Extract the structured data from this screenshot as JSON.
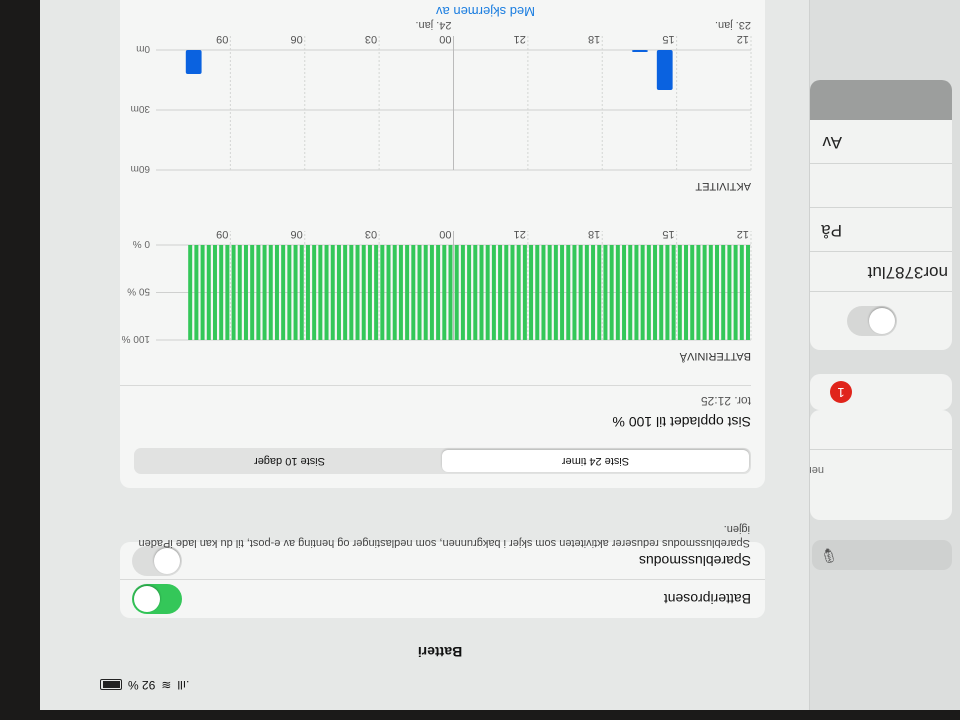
{
  "status_bar": {
    "battery_percent": "92 %",
    "signal_icon": "signal-icon",
    "wifi_icon": "wifi-icon",
    "battery_icon": "battery-icon"
  },
  "sidebar": {
    "search_icon": "microphone-icon",
    "items": [
      {
        "label": "ner"
      },
      {
        "badge": "1"
      },
      {
        "toggle_on": false
      },
      {
        "label": "nor3787lut"
      },
      {
        "label": "På"
      },
      {
        "label": "Av"
      }
    ]
  },
  "header": {
    "title": "Batteri"
  },
  "settings": {
    "battery_percent_label": "Batteriprosent",
    "battery_percent_on": true,
    "low_power_label": "Sparebluss­modus",
    "low_power_on": false,
    "low_power_description": "Sparebluss­modus reduserer aktiviteten som skjer i bakgrunnen, som nedlastinger og henting av e-post, til du kan lade iPaden igjen."
  },
  "usage": {
    "tabs": [
      {
        "label": "Siste 24 timer",
        "selected": true
      },
      {
        "label": "Siste 10 dager",
        "selected": false
      }
    ],
    "last_charged_title": "Sist oppladet til 100 %",
    "last_charged_time": "tor. 21:25",
    "link_label": "Med skjermen av"
  },
  "colors": {
    "green": "#34c759",
    "blue": "#0a62e0",
    "badge_red": "#e0241b"
  },
  "chart_data": [
    {
      "type": "bar",
      "title": "BATTERINIVÅ",
      "x_ticks": [
        "12",
        "15",
        "18",
        "21",
        "00",
        "03",
        "06",
        "09"
      ],
      "y_ticks": [
        "100 %",
        "50 %",
        "0 %"
      ],
      "ylim": [
        0,
        100
      ],
      "interval": "15 min",
      "start": "12:00",
      "values": [
        100,
        100,
        100,
        100,
        100,
        100,
        100,
        100,
        100,
        100,
        100,
        100,
        100,
        100,
        100,
        100,
        100,
        100,
        100,
        100,
        100,
        100,
        100,
        100,
        100,
        100,
        100,
        100,
        100,
        100,
        100,
        100,
        100,
        100,
        100,
        100,
        100,
        100,
        100,
        100,
        100,
        100,
        100,
        100,
        100,
        100,
        100,
        100,
        100,
        100,
        100,
        100,
        100,
        100,
        100,
        100,
        100,
        100,
        100,
        100,
        100,
        100,
        100,
        100,
        100,
        100,
        100,
        100,
        100,
        100,
        100,
        100,
        100,
        100,
        100,
        100,
        100,
        100,
        100,
        100,
        100,
        100,
        100,
        100,
        100,
        100,
        100,
        100,
        100,
        100,
        100
      ],
      "color": "#34c759"
    },
    {
      "type": "bar",
      "title": "AKTIVITET",
      "x_ticks": [
        "12",
        "15",
        "18",
        "21",
        "00",
        "03",
        "06",
        "09"
      ],
      "date_labels": [
        "23. jan.",
        "24. jan."
      ],
      "y_ticks": [
        "60m",
        "30m",
        "0m"
      ],
      "ylim": [
        0,
        60
      ],
      "bars": [
        {
          "hour": "15:00",
          "minutes": 20
        },
        {
          "hour": "16:00",
          "minutes": 1
        },
        {
          "hour": "10:00",
          "minutes": 12
        }
      ],
      "color": "#0a62e0"
    }
  ]
}
